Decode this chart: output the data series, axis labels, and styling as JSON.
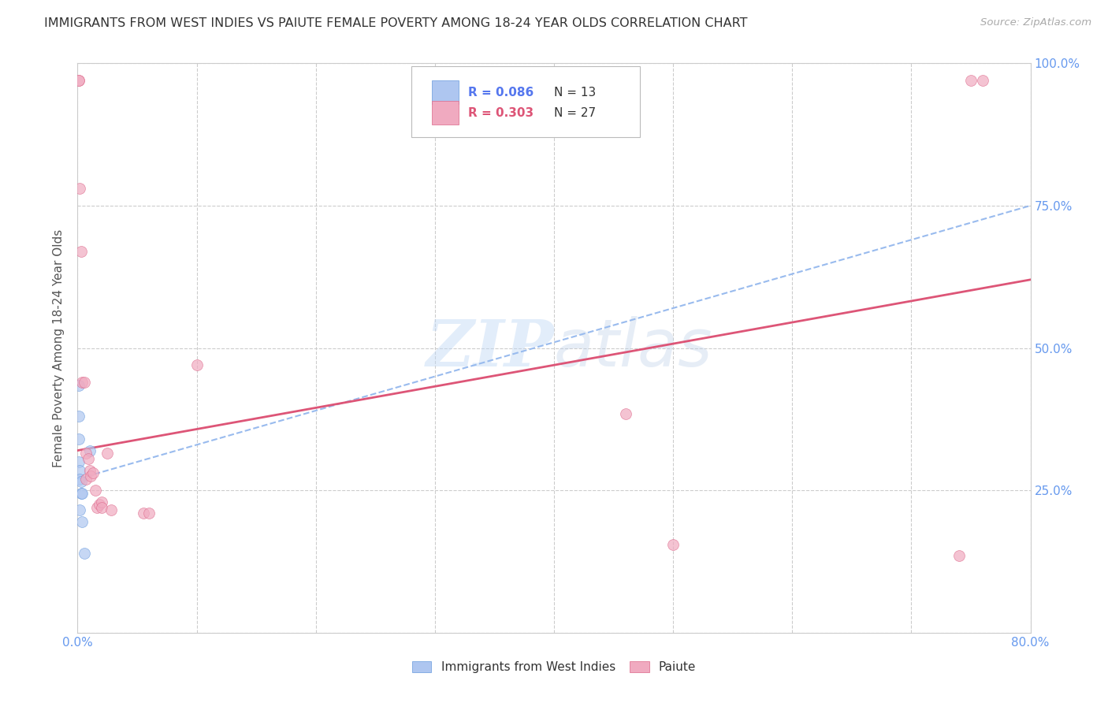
{
  "title": "IMMIGRANTS FROM WEST INDIES VS PAIUTE FEMALE POVERTY AMONG 18-24 YEAR OLDS CORRELATION CHART",
  "source": "Source: ZipAtlas.com",
  "ylabel": "Female Poverty Among 18-24 Year Olds",
  "xlim": [
    0,
    0.8
  ],
  "ylim": [
    0,
    1.0
  ],
  "xticks": [
    0.0,
    0.1,
    0.2,
    0.3,
    0.4,
    0.5,
    0.6,
    0.7,
    0.8
  ],
  "xticklabels_left": "0.0%",
  "xticklabels_right": "80.0%",
  "yticks": [
    0.0,
    0.25,
    0.5,
    0.75,
    1.0
  ],
  "yticklabels_right": [
    "",
    "25.0%",
    "50.0%",
    "75.0%",
    "100.0%"
  ],
  "legend_r1": "R = 0.086",
  "legend_n1": "N = 13",
  "legend_r2": "R = 0.303",
  "legend_n2": "N = 27",
  "color_blue_fill": "#aec6f0",
  "color_blue_edge": "#6699dd",
  "color_pink_fill": "#f0aac0",
  "color_pink_edge": "#dd6688",
  "color_trendline_blue": "#99bbee",
  "color_trendline_pink": "#dd5577",
  "color_grid": "#cccccc",
  "color_axis_right": "#6699ee",
  "background": "#ffffff",
  "west_indies_x": [
    0.001,
    0.001,
    0.001,
    0.001,
    0.002,
    0.002,
    0.002,
    0.003,
    0.003,
    0.004,
    0.004,
    0.006,
    0.01
  ],
  "west_indies_y": [
    0.435,
    0.38,
    0.34,
    0.3,
    0.285,
    0.27,
    0.215,
    0.265,
    0.245,
    0.245,
    0.195,
    0.14,
    0.32
  ],
  "paiute_x": [
    0.001,
    0.001,
    0.002,
    0.003,
    0.004,
    0.006,
    0.007,
    0.007,
    0.009,
    0.01,
    0.011,
    0.013,
    0.015,
    0.016,
    0.018,
    0.02,
    0.02,
    0.025,
    0.028,
    0.055,
    0.06,
    0.1,
    0.46,
    0.5,
    0.74,
    0.75,
    0.76
  ],
  "paiute_y": [
    0.97,
    0.97,
    0.78,
    0.67,
    0.44,
    0.44,
    0.315,
    0.27,
    0.305,
    0.285,
    0.275,
    0.28,
    0.25,
    0.22,
    0.225,
    0.23,
    0.22,
    0.315,
    0.215,
    0.21,
    0.21,
    0.47,
    0.385,
    0.155,
    0.135,
    0.97,
    0.97
  ],
  "wi_trend_x0": 0.0,
  "wi_trend_x1": 0.8,
  "wi_trend_y0": 0.27,
  "wi_trend_y1": 0.75,
  "paiute_trend_x0": 0.0,
  "paiute_trend_x1": 0.8,
  "paiute_trend_y0": 0.32,
  "paiute_trend_y1": 0.62,
  "watermark_zip": "ZIP",
  "watermark_atlas": "atlas",
  "marker_size": 100,
  "marker_alpha": 0.7,
  "label_series1": "Immigrants from West Indies",
  "label_series2": "Paiute"
}
